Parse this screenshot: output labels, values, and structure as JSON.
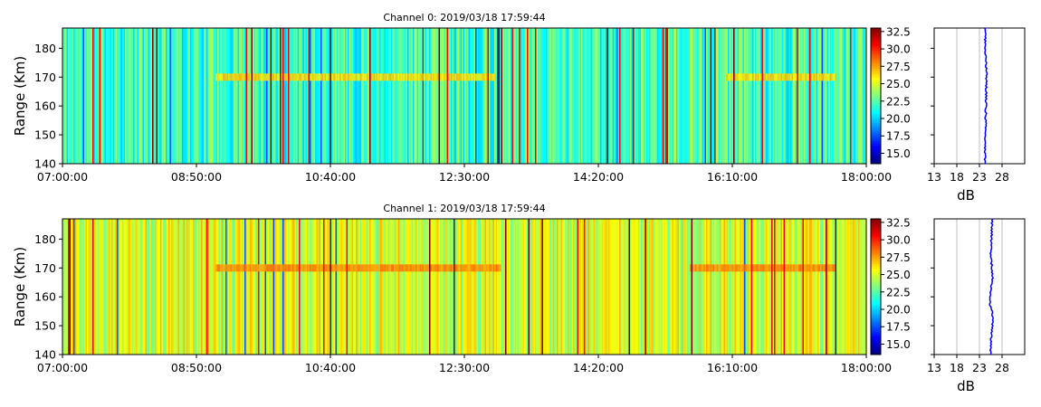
{
  "chart_data": [
    {
      "type": "heatmap",
      "title": "Channel 0: 2019/03/18 17:59:44",
      "ylabel": "Range (Km)",
      "xlabel": "",
      "x_ticks": [
        "07:00:00",
        "08:50:00",
        "10:40:00",
        "12:30:00",
        "14:20:00",
        "16:10:00",
        "18:00:00"
      ],
      "y_ticks": [
        "140",
        "150",
        "160",
        "170",
        "180"
      ],
      "ylim": [
        140,
        187
      ],
      "colorbar": {
        "colormap": "jet",
        "range": [
          13.5,
          33
        ],
        "ticks": [
          "15.0",
          "17.5",
          "20.0",
          "22.5",
          "25.0",
          "27.5",
          "30.0",
          "32.5"
        ]
      },
      "features": {
        "background_level_db": 22,
        "layer_range_km": 170,
        "layer_level_db": 26.5,
        "layer_intervals": [
          [
            "09:05:00",
            "12:55:00"
          ],
          [
            "16:05:00",
            "17:35:00"
          ]
        ]
      },
      "profile": {
        "xlabel": "dB",
        "x_ticks": [
          "13",
          "18",
          "23",
          "28"
        ],
        "xlim": [
          13,
          33
        ],
        "ranges_km": [
          140,
          145,
          150,
          155,
          160,
          165,
          170,
          175,
          180,
          185,
          187
        ],
        "values_db": [
          24.2,
          24.3,
          24.3,
          24.4,
          24.4,
          24.5,
          24.6,
          24.4,
          24.3,
          24.3,
          24.3
        ],
        "color": "#0000ff"
      }
    },
    {
      "type": "heatmap",
      "title": "Channel 1: 2019/03/18 17:59:44",
      "ylabel": "Range (Km)",
      "xlabel": "",
      "x_ticks": [
        "07:00:00",
        "08:50:00",
        "10:40:00",
        "12:30:00",
        "14:20:00",
        "16:10:00",
        "18:00:00"
      ],
      "y_ticks": [
        "140",
        "150",
        "160",
        "170",
        "180"
      ],
      "ylim": [
        140,
        187
      ],
      "colorbar": {
        "colormap": "jet",
        "range": [
          13.5,
          33
        ],
        "ticks": [
          "15.0",
          "17.5",
          "20.0",
          "22.5",
          "25.0",
          "27.5",
          "30.0",
          "32.5"
        ]
      },
      "features": {
        "background_level_db": 25,
        "layer_range_km": 170,
        "layer_level_db": 28,
        "layer_intervals": [
          [
            "09:05:00",
            "13:00:00"
          ],
          [
            "15:35:00",
            "17:35:00"
          ]
        ]
      },
      "profile": {
        "xlabel": "dB",
        "x_ticks": [
          "13",
          "18",
          "23",
          "28"
        ],
        "xlim": [
          13,
          33
        ],
        "ranges_km": [
          140,
          145,
          148,
          152,
          155,
          158,
          162,
          166,
          170,
          174,
          178,
          182,
          187
        ],
        "values_db": [
          25.4,
          25.5,
          25.8,
          26.0,
          25.7,
          25.3,
          25.4,
          25.9,
          25.8,
          25.5,
          25.6,
          25.7,
          25.8
        ],
        "color": "#0000ff"
      }
    }
  ]
}
